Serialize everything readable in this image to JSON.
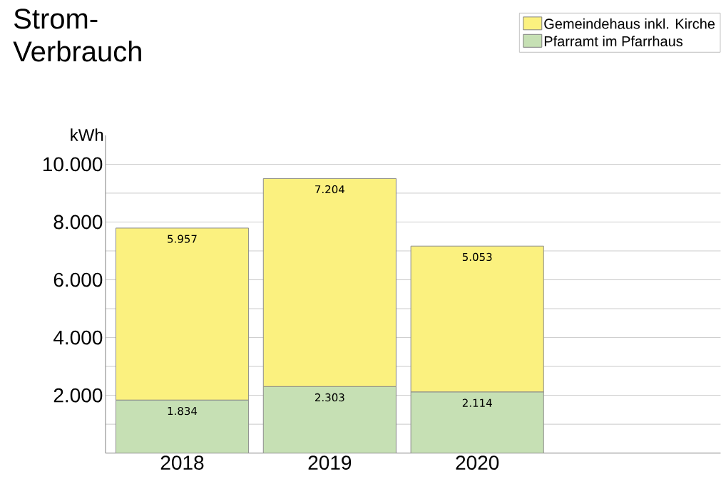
{
  "chart_data": {
    "type": "bar",
    "stacked": true,
    "title": "Strom-Verbrauch",
    "ylabel": "kWh",
    "categories": [
      "2018",
      "2019",
      "2020"
    ],
    "series": [
      {
        "name": "Pfarramt im Pfarrhaus",
        "color": "#c6e0b4",
        "values": [
          1834,
          2303,
          2114
        ],
        "value_labels": [
          "1.834",
          "2.303",
          "2.114"
        ]
      },
      {
        "name": "Gemeindehaus inkl. Kirche",
        "color": "#fbf17f",
        "values": [
          5957,
          7204,
          5053
        ],
        "value_labels": [
          "5.957",
          "7.204",
          "5.053"
        ]
      }
    ],
    "ylim": [
      0,
      11000
    ],
    "yticks": [
      {
        "value": 1000,
        "label": null
      },
      {
        "value": 2000,
        "label": "2.000"
      },
      {
        "value": 3000,
        "label": null
      },
      {
        "value": 4000,
        "label": "4.000"
      },
      {
        "value": 5000,
        "label": null
      },
      {
        "value": 6000,
        "label": "6.000"
      },
      {
        "value": 7000,
        "label": null
      },
      {
        "value": 8000,
        "label": "8.000"
      },
      {
        "value": 9000,
        "label": null
      },
      {
        "value": 10000,
        "label": "10.000"
      }
    ],
    "grid": "y",
    "legend": "top right"
  }
}
